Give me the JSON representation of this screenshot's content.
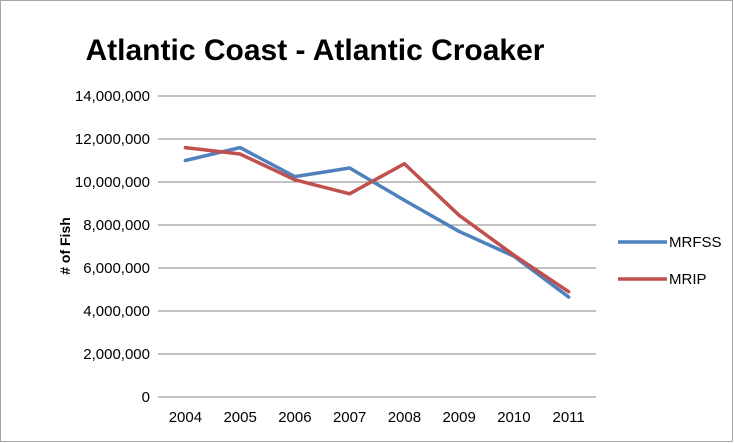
{
  "chart_data": {
    "type": "line",
    "title": "Atlantic Coast - Atlantic Croaker",
    "xlabel": "",
    "ylabel": "# of Fish",
    "categories": [
      "2004",
      "2005",
      "2006",
      "2007",
      "2008",
      "2009",
      "2010",
      "2011"
    ],
    "ylim": [
      0,
      14000000
    ],
    "yticks": [
      0,
      2000000,
      4000000,
      6000000,
      8000000,
      10000000,
      12000000,
      14000000
    ],
    "ytick_labels": [
      "0",
      "2,000,000",
      "4,000,000",
      "6,000,000",
      "8,000,000",
      "10,000,000",
      "12,000,000",
      "14,000,000"
    ],
    "grid": true,
    "legend_position": "right",
    "series": [
      {
        "name": "MRFSS",
        "color": "#4f81bd",
        "values": [
          11000000,
          11600000,
          10250000,
          10650000,
          9150000,
          7700000,
          6550000,
          4650000
        ]
      },
      {
        "name": "MRIP",
        "color": "#c0504d",
        "values": [
          11600000,
          11300000,
          10100000,
          9450000,
          10850000,
          8450000,
          6600000,
          4900000
        ]
      }
    ]
  }
}
